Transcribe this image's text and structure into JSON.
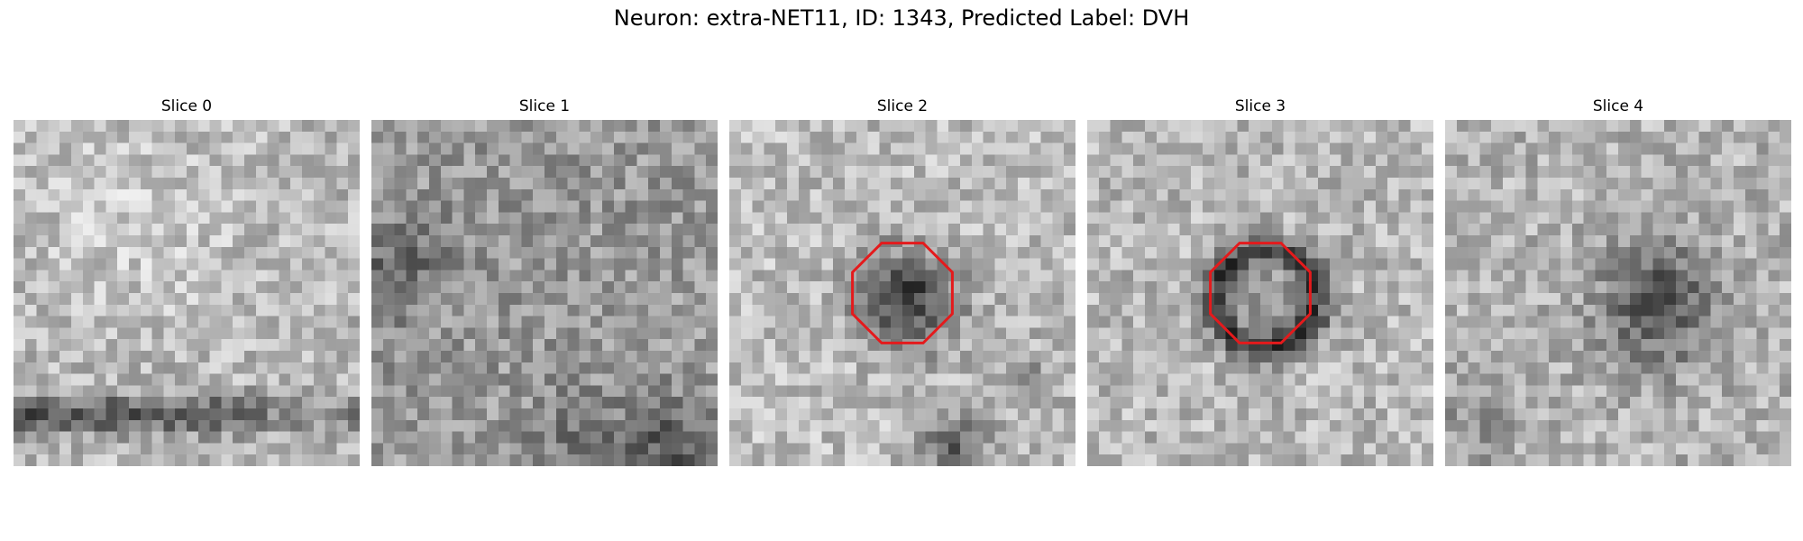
{
  "figure": {
    "title": "Neuron: extra-NET11, ID: 1343, Predicted Label: DVH"
  },
  "panels": [
    {
      "title": "Slice 0",
      "roi": false
    },
    {
      "title": "Slice 1",
      "roi": false
    },
    {
      "title": "Slice 2",
      "roi": true
    },
    {
      "title": "Slice 3",
      "roi": true
    },
    {
      "title": "Slice 4",
      "roi": false
    }
  ],
  "style": {
    "roi_color": "#e41a1c",
    "colormap": "grayscale"
  }
}
